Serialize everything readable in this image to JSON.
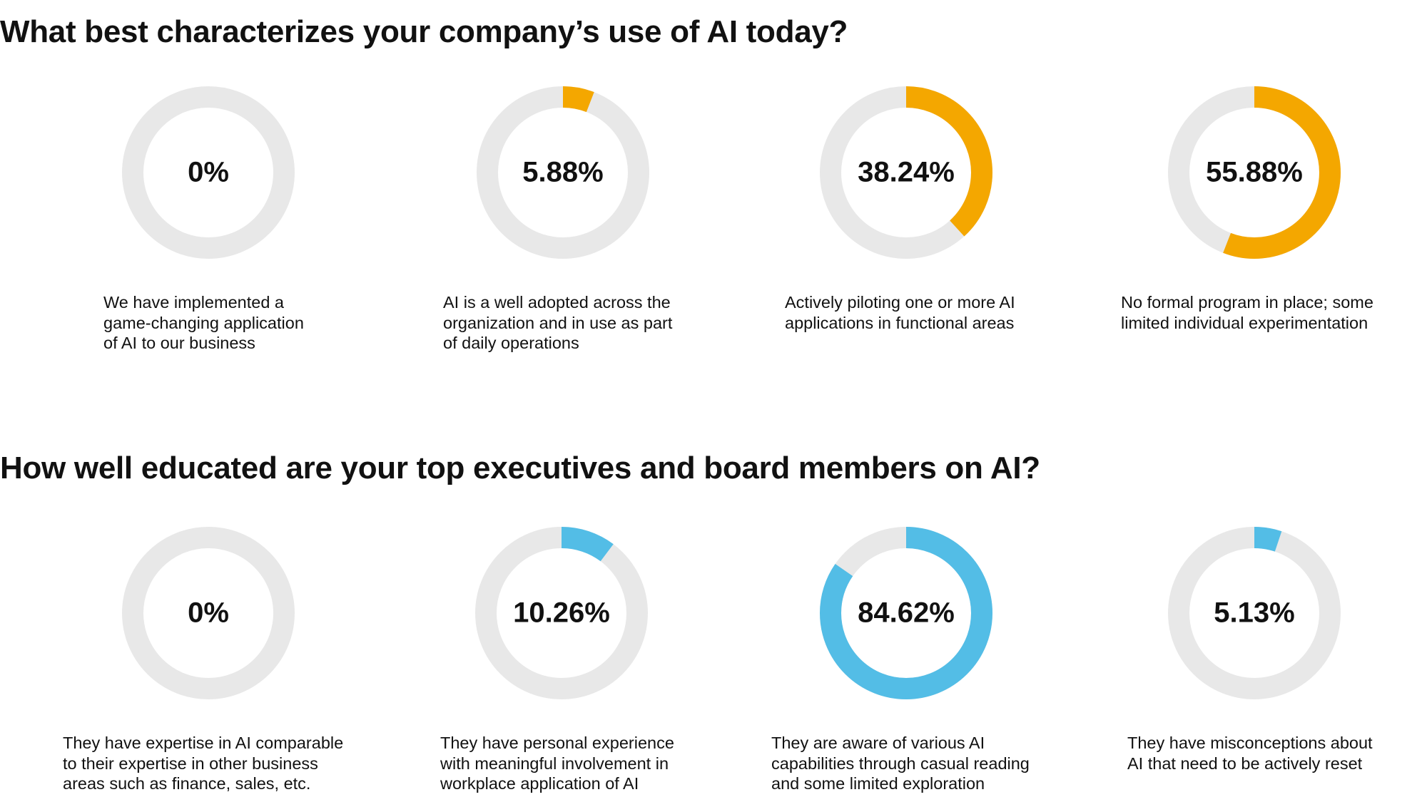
{
  "colors": {
    "track": "#e8e8e8",
    "orange": "#f4a700",
    "blue": "#53bde6"
  },
  "q1": {
    "title": "What best characterizes your company’s use of AI today?",
    "items": [
      {
        "label": "0%",
        "value": 0,
        "text": "We have implemented a\ngame-changing application\nof AI to our business"
      },
      {
        "label": "5.88%",
        "value": 5.88,
        "text": "AI is a well adopted across the\norganization and in use as part\nof daily operations"
      },
      {
        "label": "38.24%",
        "value": 38.24,
        "text": "Actively piloting one or more AI\napplications in functional areas"
      },
      {
        "label": "55.88%",
        "value": 55.88,
        "text": "No formal program in place; some\nlimited individual experimentation"
      }
    ]
  },
  "q2": {
    "title": "How well educated are your top executives and board members on AI?",
    "items": [
      {
        "label": "0%",
        "value": 0,
        "text": "They have expertise in AI comparable\nto their expertise in other business\nareas such as finance, sales, etc."
      },
      {
        "label": "10.26%",
        "value": 10.26,
        "text": "They have personal experience\nwith meaningful involvement in\nworkplace application of AI"
      },
      {
        "label": "84.62%",
        "value": 84.62,
        "text": "They are aware of various AI\ncapabilities through casual reading\nand some limited exploration"
      },
      {
        "label": "5.13%",
        "value": 5.13,
        "text": "They have misconceptions about\nAI that need to be actively reset"
      }
    ]
  },
  "chart_data": [
    {
      "type": "pie",
      "title": "What best characterizes your company’s use of AI today?",
      "categories": [
        "We have implemented a game-changing application of AI to our business",
        "AI is a well adopted across the organization and in use as part of daily operations",
        "Actively piloting one or more AI applications in functional areas",
        "No formal program in place; some limited individual experimentation"
      ],
      "values": [
        0,
        5.88,
        38.24,
        55.88
      ]
    },
    {
      "type": "pie",
      "title": "How well educated are your top executives and board members on AI?",
      "categories": [
        "They have expertise in AI comparable to their expertise in other business areas such as finance, sales, etc.",
        "They have personal experience with meaningful involvement in workplace application of AI",
        "They are aware of various AI capabilities through casual reading and some limited exploration",
        "They have misconceptions about AI that need to be actively reset"
      ],
      "values": [
        0,
        10.26,
        84.62,
        5.13
      ]
    }
  ]
}
